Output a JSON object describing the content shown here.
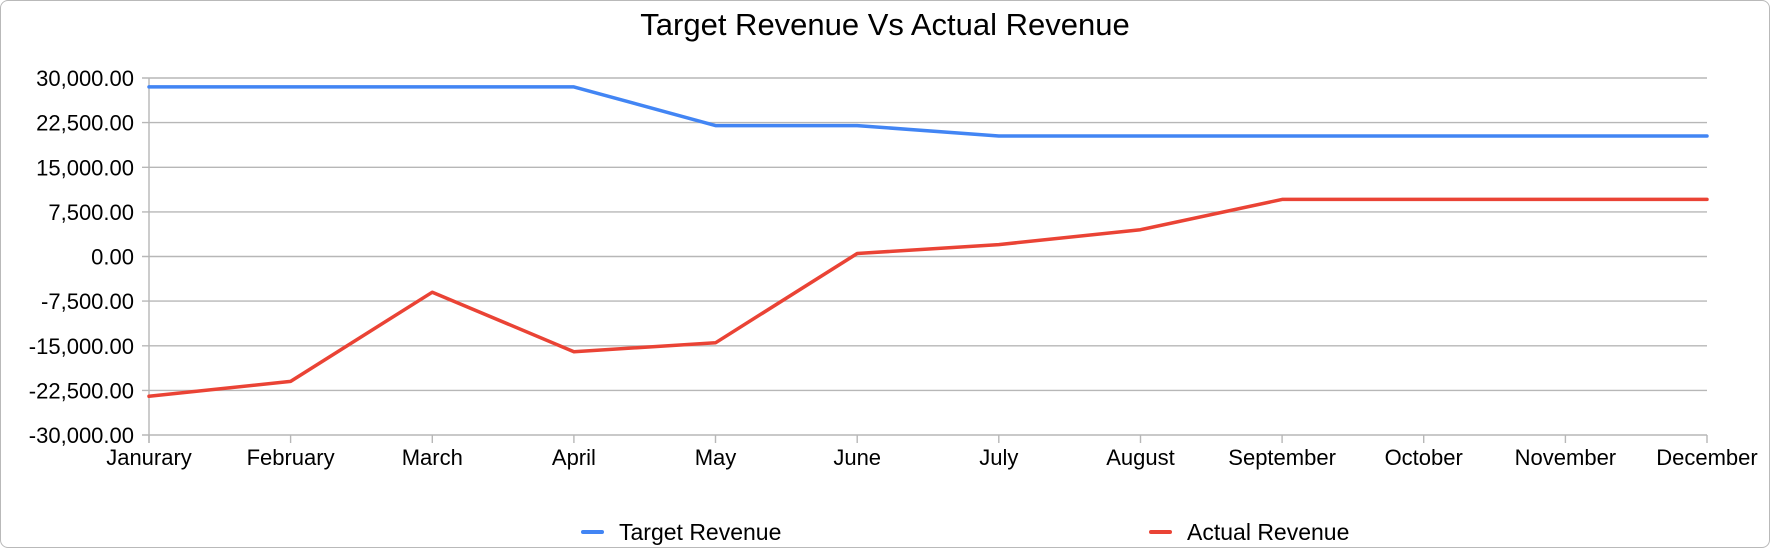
{
  "chart": {
    "title": "Target Revenue Vs Actual Revenue",
    "legend": [
      {
        "label": "Target Revenue",
        "color": "#4285f4"
      },
      {
        "label": "Actual Revenue",
        "color": "#ea4335"
      }
    ]
  },
  "chart_data": {
    "type": "line",
    "title": "Target Revenue Vs Actual Revenue",
    "categories": [
      "Janurary",
      "February",
      "March",
      "April",
      "May",
      "June",
      "July",
      "August",
      "September",
      "October",
      "November",
      "December"
    ],
    "series": [
      {
        "name": "Target Revenue",
        "color": "#4285f4",
        "values": [
          28500,
          28500,
          28500,
          28500,
          22000,
          22000,
          20250,
          20250,
          20250,
          20250,
          20250,
          20250
        ]
      },
      {
        "name": "Actual Revenue",
        "color": "#ea4335",
        "values": [
          -23500,
          -21000,
          -6000,
          -16000,
          -14500,
          500,
          2000,
          4500,
          9600,
          9600,
          9600,
          9600
        ]
      }
    ],
    "xlabel": "",
    "ylabel": "",
    "ylim": [
      -30000,
      30000
    ],
    "ytick_step": 7500,
    "ytick_labels": [
      "30,000.00",
      "22,500.00",
      "15,000.00",
      "7,500.00",
      "0.00",
      "-7,500.00",
      "-15,000.00",
      "-22,500.00",
      "-30,000.00"
    ],
    "grid": true,
    "legend_position": "bottom",
    "gridline_color": "#b7b7b7",
    "axis_text_color": "#000000"
  }
}
